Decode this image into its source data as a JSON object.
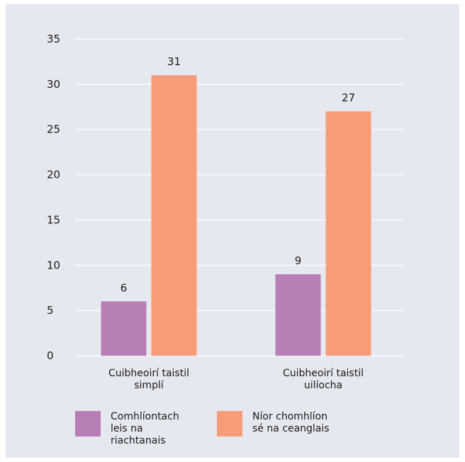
{
  "chart_data": {
    "type": "bar",
    "categories": [
      [
        "Cuibheoirí taistil",
        "simplí"
      ],
      [
        "Cuibheoirí taistil",
        "uilíocha"
      ]
    ],
    "series": [
      {
        "name": "Comhlíontach\nleis na\nriachtanais",
        "values": [
          6,
          9
        ],
        "color": "#b87eb6"
      },
      {
        "name": "Níor chomhlíon\nsé na ceanglais",
        "values": [
          31,
          27
        ],
        "color": "#f79c79"
      }
    ],
    "yticks": [
      0,
      5,
      10,
      15,
      20,
      25,
      30,
      35
    ],
    "ylim": [
      0,
      35
    ],
    "grid": true,
    "legend_position": "bottom-left"
  }
}
